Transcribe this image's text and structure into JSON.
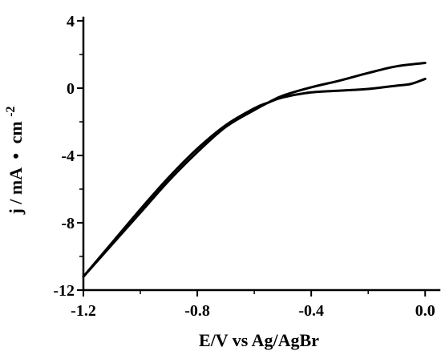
{
  "chart_data": {
    "type": "line",
    "title": "",
    "xlabel": "E/V vs Ag/AgBr",
    "ylabel_main": "j / mA",
    "ylabel_bullet": "•",
    "ylabel_unit": "cm",
    "ylabel_exp": "-2",
    "xlim": [
      -1.2,
      0.05
    ],
    "ylim": [
      -12,
      4
    ],
    "xticks": [
      -1.2,
      -0.8,
      -0.4,
      0.0
    ],
    "xtick_labels": [
      "-1.2",
      "-0.8",
      "-0.4",
      "0.0"
    ],
    "yticks": [
      -12,
      -8,
      -4,
      0,
      4
    ],
    "ytick_labels": [
      "-12",
      "-8",
      "-4",
      "0",
      "4"
    ],
    "grid": false,
    "line_color": "#000000",
    "series": [
      {
        "x": [
          -1.2,
          -1.1,
          -1.0,
          -0.9,
          -0.8,
          -0.7,
          -0.6,
          -0.55,
          -0.5,
          -0.4,
          -0.3,
          -0.2,
          -0.1,
          0.0
        ],
        "y": [
          -11.2,
          -9.3,
          -7.4,
          -5.5,
          -3.8,
          -2.3,
          -1.3,
          -0.85,
          -0.45,
          0.05,
          0.45,
          0.9,
          1.3,
          1.5
        ]
      },
      {
        "x": [
          0.0,
          -0.05,
          -0.1,
          -0.2,
          -0.3,
          -0.4,
          -0.5,
          -0.55,
          -0.6,
          -0.7,
          -0.8,
          -0.9,
          -1.0,
          -1.1,
          -1.2
        ],
        "y": [
          0.55,
          0.25,
          0.15,
          -0.05,
          -0.15,
          -0.25,
          -0.55,
          -0.85,
          -1.2,
          -2.2,
          -3.6,
          -5.3,
          -7.2,
          -9.2,
          -11.2
        ]
      }
    ]
  }
}
